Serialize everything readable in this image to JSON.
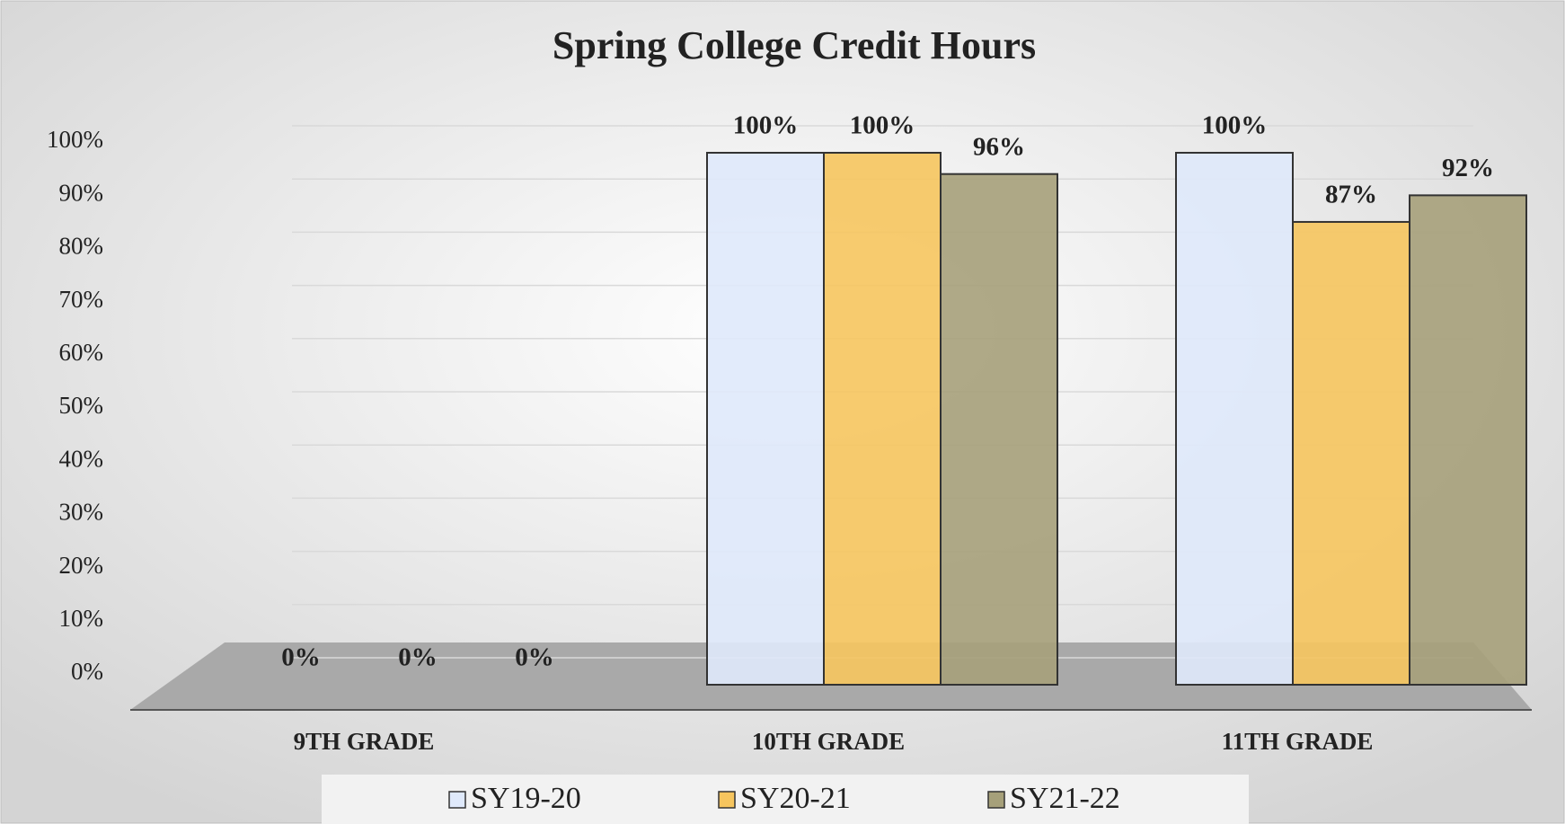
{
  "chart_data": {
    "type": "bar",
    "title": "Spring College Credit Hours",
    "categories": [
      "9TH GRADE",
      "10TH GRADE",
      "11TH GRADE"
    ],
    "series": [
      {
        "name": "SY19-20",
        "color": "#dfe9fb",
        "values": [
          0,
          100,
          100
        ],
        "value_labels": [
          "0%",
          "100%",
          "100%"
        ]
      },
      {
        "name": "SY20-21",
        "color": "#f6c55e",
        "values": [
          0,
          100,
          87
        ],
        "value_labels": [
          "0%",
          "100%",
          "87%"
        ]
      },
      {
        "name": "SY21-22",
        "color": "#a6a07a",
        "values": [
          0,
          96,
          92
        ],
        "value_labels": [
          "0%",
          "96%",
          "92%"
        ]
      }
    ],
    "ylim": [
      0,
      100
    ],
    "yticks": [
      {
        "value": 0,
        "label": "0%"
      },
      {
        "value": 10,
        "label": "10%"
      },
      {
        "value": 20,
        "label": "20%"
      },
      {
        "value": 30,
        "label": "30%"
      },
      {
        "value": 40,
        "label": "40%"
      },
      {
        "value": 50,
        "label": "50%"
      },
      {
        "value": 60,
        "label": "60%"
      },
      {
        "value": 70,
        "label": "70%"
      },
      {
        "value": 80,
        "label": "80%"
      },
      {
        "value": 90,
        "label": "90%"
      },
      {
        "value": 100,
        "label": "100%"
      }
    ],
    "grid": true,
    "legend": "bottom"
  }
}
